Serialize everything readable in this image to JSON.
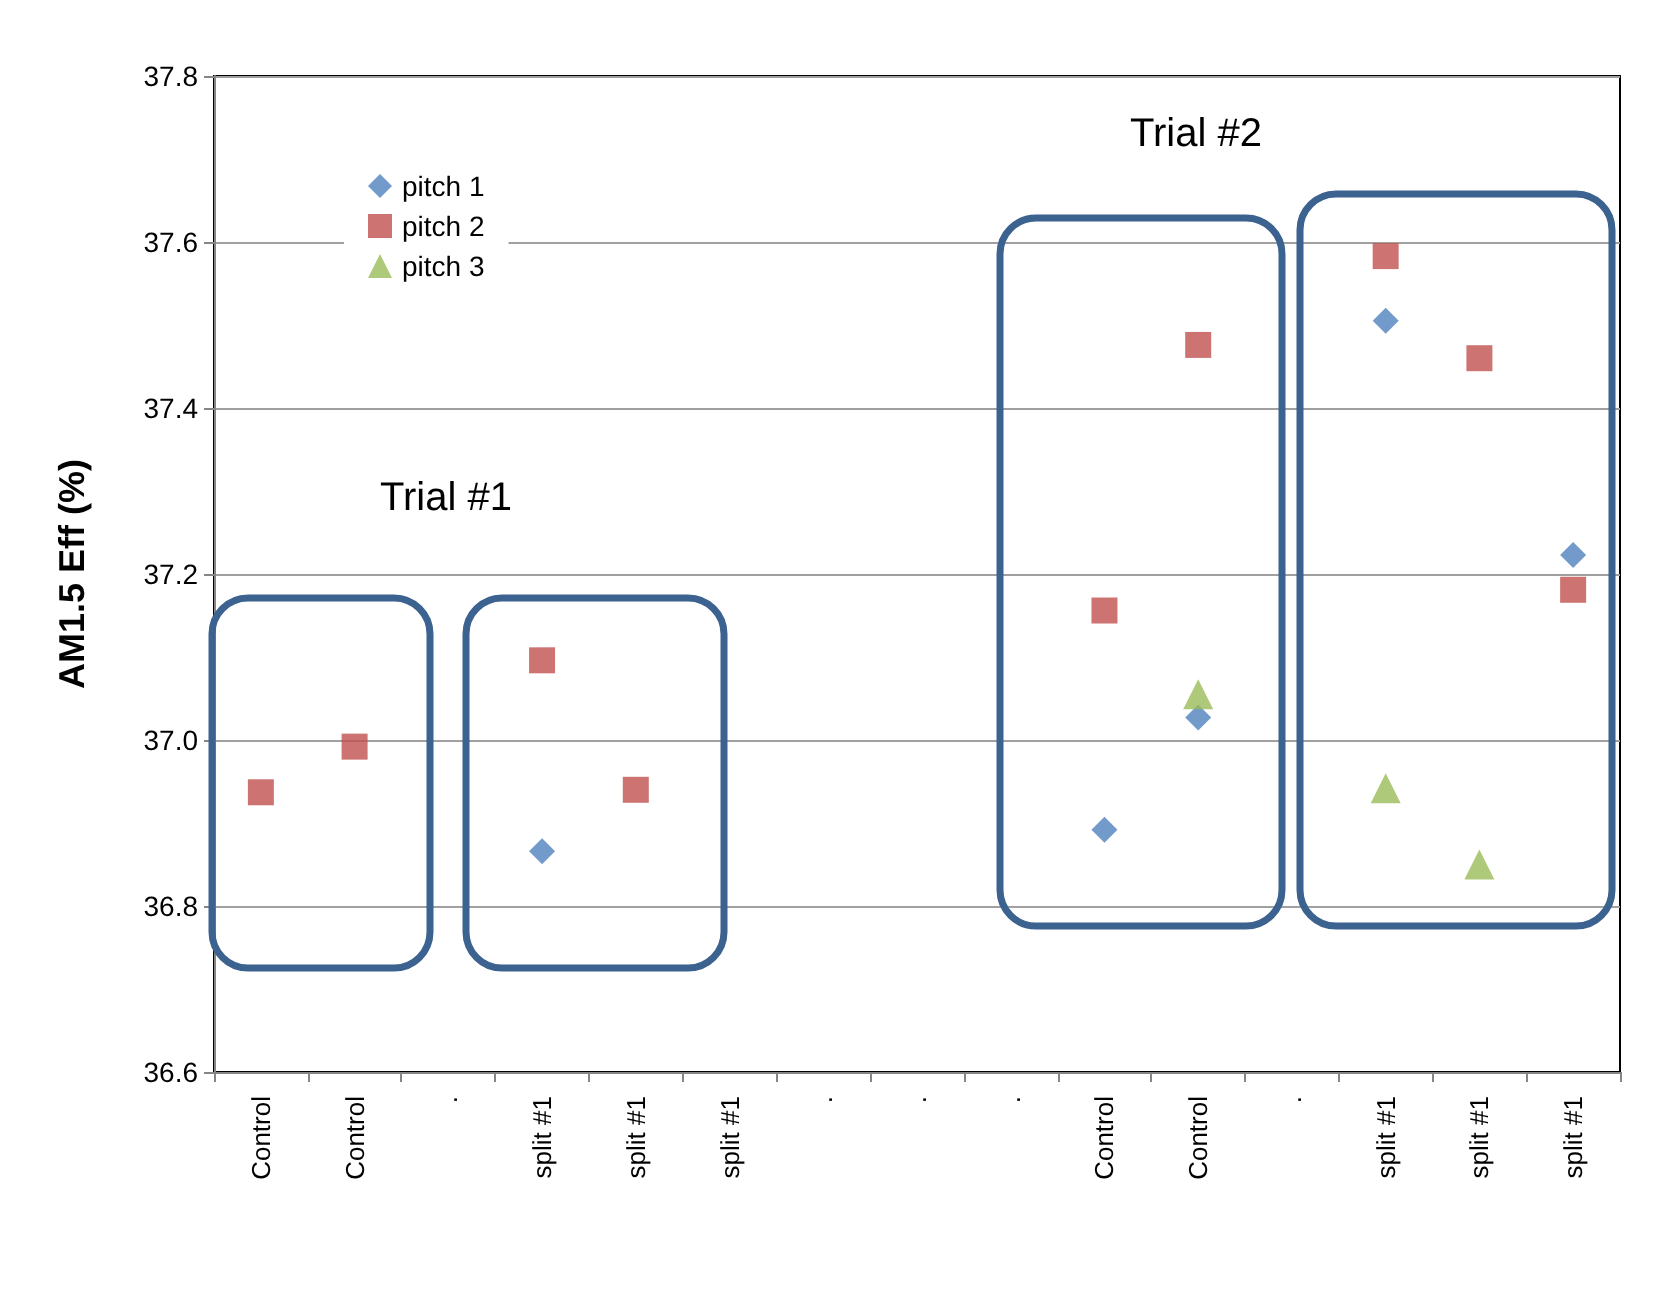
{
  "chart_data": {
    "type": "scatter",
    "ylabel": "AM1.5 Eff (%)",
    "categories": [
      "Control",
      "Control",
      ".",
      "split #1",
      "split #1",
      "split #1",
      ".",
      ".",
      ".",
      "Control",
      "Control",
      ".",
      "split #1",
      "split #1",
      "split #1"
    ],
    "series": [
      {
        "name": "pitch 1",
        "color": "#4f81bd",
        "marker": "diamond",
        "values": [
          null,
          null,
          null,
          36.866,
          null,
          null,
          null,
          null,
          null,
          36.892,
          37.027,
          null,
          37.505,
          null,
          37.223
        ]
      },
      {
        "name": "pitch 2",
        "color": "#c0504d",
        "marker": "square",
        "values": [
          36.937,
          36.992,
          null,
          37.096,
          36.94,
          null,
          null,
          null,
          null,
          37.156,
          37.476,
          null,
          37.583,
          37.46,
          37.181
        ]
      },
      {
        "name": "pitch 3",
        "color": "#9bbb59",
        "marker": "triangle",
        "values": [
          null,
          null,
          null,
          null,
          null,
          null,
          null,
          null,
          null,
          null,
          37.055,
          null,
          36.942,
          36.85,
          null
        ]
      }
    ],
    "ylim": [
      36.6,
      37.8
    ],
    "yticks": [
      36.6,
      36.8,
      {
        "value": 37,
        "label": "37.0"
      },
      37.2,
      37.4,
      37.6,
      37.8
    ],
    "grid": "y",
    "legend": "top left",
    "annotations": [
      "Trial #1",
      "Trial #2"
    ]
  }
}
